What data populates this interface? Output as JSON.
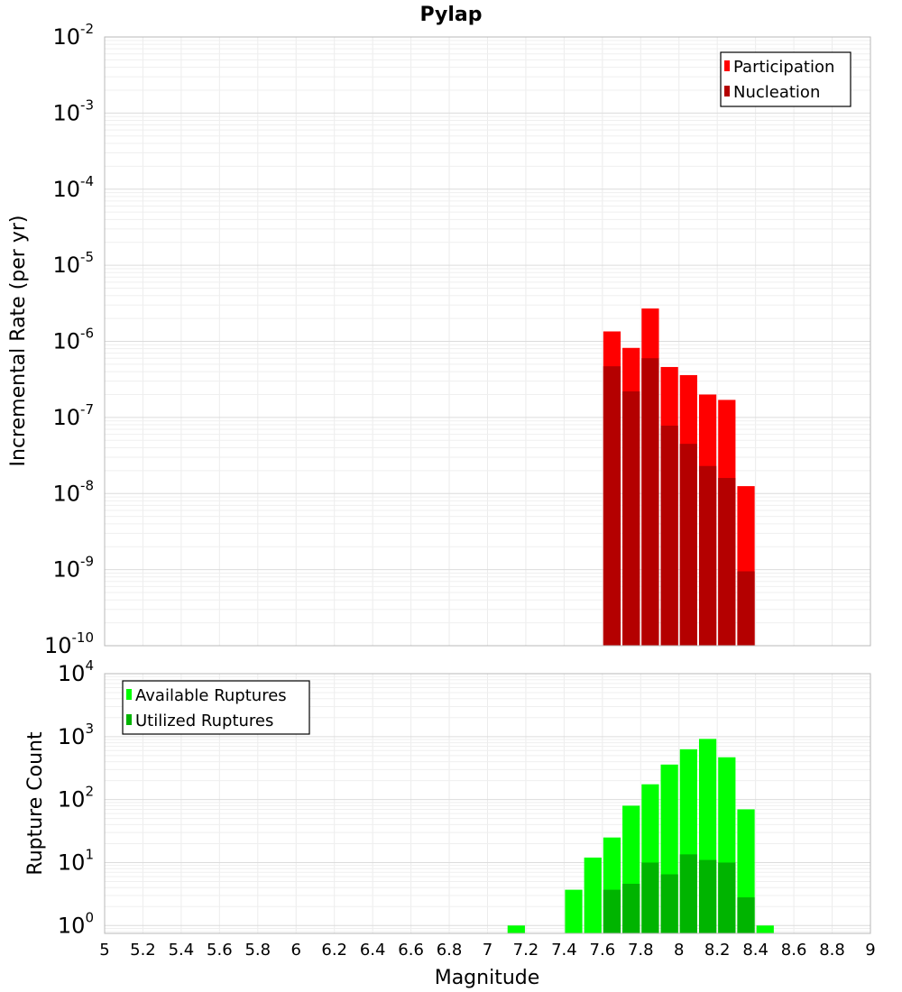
{
  "chart_data": [
    {
      "type": "bar",
      "title": "Pylap",
      "xlabel": "",
      "ylabel": "Incremental Rate (per yr)",
      "y_scale": "log",
      "ylim": [
        1e-10,
        0.01
      ],
      "xlim": [
        5,
        9
      ],
      "y_tick_labels": [
        {
          "base": "10",
          "exp": "-2"
        },
        {
          "base": "10",
          "exp": "-3"
        },
        {
          "base": "10",
          "exp": "-4"
        },
        {
          "base": "10",
          "exp": "-5"
        },
        {
          "base": "10",
          "exp": "-6"
        },
        {
          "base": "10",
          "exp": "-7"
        },
        {
          "base": "10",
          "exp": "-8"
        },
        {
          "base": "10",
          "exp": "-9"
        },
        {
          "base": "10",
          "exp": "-10"
        }
      ],
      "grid": true,
      "legend": "top-right",
      "bar_width": 0.1,
      "x": [
        7.65,
        7.75,
        7.85,
        7.95,
        8.05,
        8.15,
        8.25,
        8.35
      ],
      "series": [
        {
          "name": "Participation",
          "color": "#ff0000",
          "values": [
            1.35e-06,
            8.2e-07,
            2.7e-06,
            4.6e-07,
            3.6e-07,
            2e-07,
            1.7e-07,
            1.25e-08
          ]
        },
        {
          "name": "Nucleation",
          "color": "#b40000",
          "values": [
            4.7e-07,
            2.2e-07,
            6e-07,
            7.8e-08,
            4.5e-08,
            2.3e-08,
            1.6e-08,
            9.5e-10
          ]
        }
      ]
    },
    {
      "type": "bar",
      "title": "",
      "xlabel": "Magnitude",
      "ylabel": "Rupture Count",
      "y_scale": "log",
      "ylim": [
        0.75,
        10000
      ],
      "xlim": [
        5,
        9
      ],
      "y_tick_labels": [
        {
          "base": "10",
          "exp": "4"
        },
        {
          "base": "10",
          "exp": "3"
        },
        {
          "base": "10",
          "exp": "2"
        },
        {
          "base": "10",
          "exp": "1"
        },
        {
          "base": "10",
          "exp": "0"
        }
      ],
      "x_tick_labels": [
        "5",
        "5.2",
        "5.4",
        "5.6",
        "5.8",
        "6",
        "6.2",
        "6.4",
        "6.6",
        "6.8",
        "7",
        "7.2",
        "7.4",
        "7.6",
        "7.8",
        "8",
        "8.2",
        "8.4",
        "8.6",
        "8.8",
        "9"
      ],
      "grid": true,
      "legend": "top-left",
      "bar_width": 0.1,
      "x": [
        7.15,
        7.45,
        7.55,
        7.65,
        7.75,
        7.85,
        7.95,
        8.05,
        8.15,
        8.25,
        8.35,
        8.45
      ],
      "series": [
        {
          "name": "Available Ruptures",
          "color": "#00ff00",
          "values": [
            1,
            3.7,
            12,
            25,
            80,
            175,
            360,
            630,
            920,
            470,
            70,
            1
          ]
        },
        {
          "name": "Utilized Ruptures",
          "color": "#00b400",
          "values": [
            0,
            0,
            0,
            3.7,
            4.6,
            10,
            6.5,
            13.5,
            11,
            10,
            2.8,
            0
          ]
        }
      ]
    }
  ]
}
